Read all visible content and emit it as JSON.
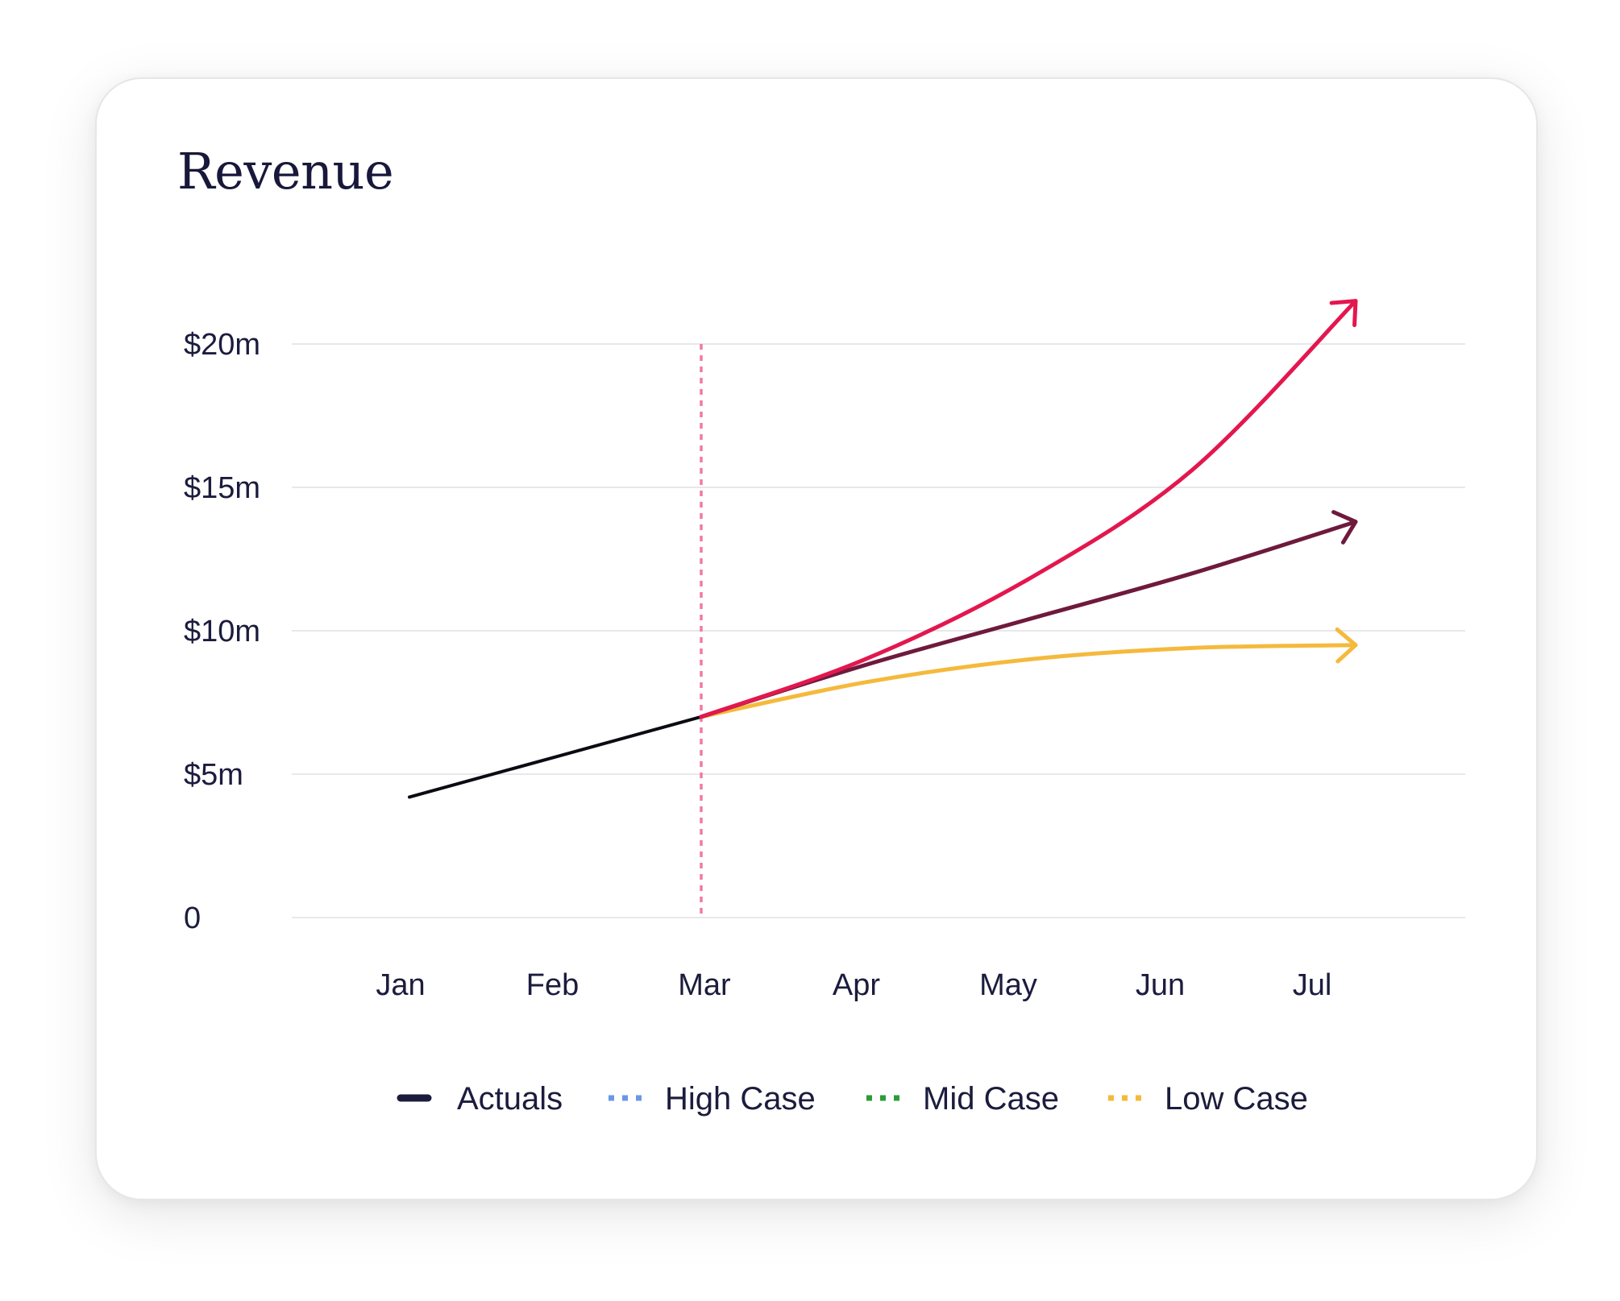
{
  "chart_data": {
    "type": "line",
    "title": "Revenue",
    "xlabel": "",
    "ylabel": "",
    "categories": [
      "Jan",
      "Feb",
      "Mar",
      "Apr",
      "May",
      "Jun",
      "Jul"
    ],
    "ylim": [
      0,
      20
    ],
    "yticks": [
      0,
      5,
      10,
      15,
      20
    ],
    "ytick_labels": [
      "0",
      "$5m",
      "$10m",
      "$15m",
      "$20m"
    ],
    "grid": true,
    "divider_category": "Mar",
    "series": [
      {
        "name": "Actuals",
        "color": "#0b0b14",
        "legend_color": "#1b1c3d",
        "legend_style": "solid",
        "arrow": false,
        "values": [
          4.2,
          5.6,
          7.0,
          null,
          null,
          null,
          null
        ]
      },
      {
        "name": "High Case",
        "color": "#e3174e",
        "legend_color": "#6b97e6",
        "legend_style": "dotted",
        "arrow": true,
        "values": [
          null,
          null,
          7.0,
          9.0,
          11.8,
          15.6,
          21.5
        ]
      },
      {
        "name": "Mid Case",
        "color": "#6e1a3c",
        "legend_color": "#2e9b3a",
        "legend_style": "dotted",
        "arrow": true,
        "values": [
          null,
          null,
          7.0,
          8.8,
          10.4,
          12.0,
          13.8
        ]
      },
      {
        "name": "Low Case",
        "color": "#f5b93c",
        "legend_color": "#f5b93c",
        "legend_style": "dotted",
        "arrow": true,
        "values": [
          null,
          null,
          7.0,
          8.2,
          9.0,
          9.4,
          9.5
        ]
      }
    ],
    "legend_position": "bottom-center"
  },
  "colors": {
    "grid": "#e8e8ec",
    "divider": "#f07aa0",
    "text": "#1b1c3d"
  }
}
